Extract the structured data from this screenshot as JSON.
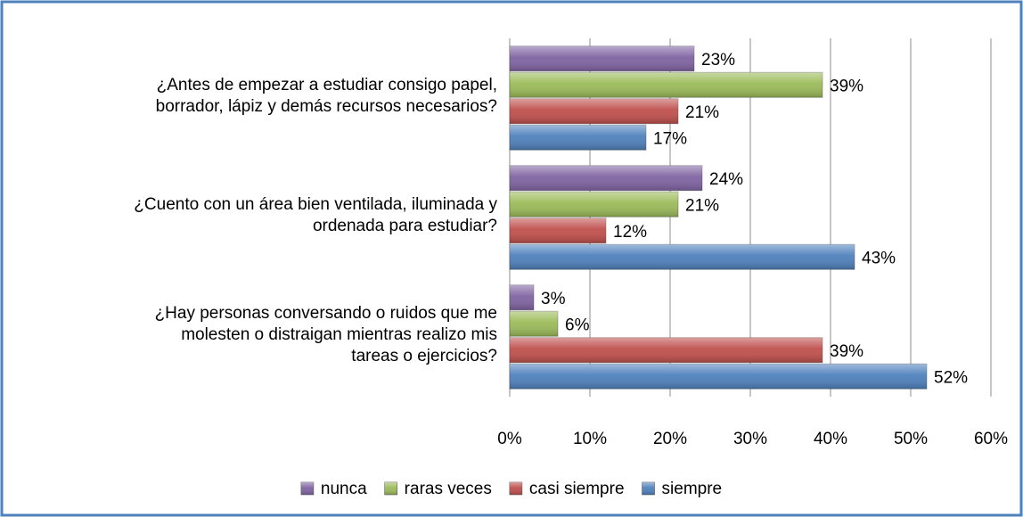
{
  "chart_data": {
    "type": "hbar",
    "categories": [
      [
        "¿Antes de empezar a estudiar consigo papel,",
        "borrador, lápiz y demás recursos necesarios?"
      ],
      [
        "¿Cuento con un área bien ventilada, iluminada y",
        "ordenada para estudiar?"
      ],
      [
        "¿Hay personas conversando o ruidos que me",
        "molesten o distraigan mientras realizo mis",
        "tareas o ejercicios?"
      ]
    ],
    "series": [
      {
        "name": "nunca",
        "color": "#8064a2",
        "values": [
          23,
          24,
          3
        ],
        "value_labels": [
          "23%",
          "24%",
          "3%"
        ]
      },
      {
        "name": "raras veces",
        "color": "#9bbb59",
        "values": [
          39,
          21,
          6
        ],
        "value_labels": [
          "39%",
          "21%",
          "6%"
        ]
      },
      {
        "name": "casi siempre",
        "color": "#c0504d",
        "values": [
          21,
          12,
          39
        ],
        "value_labels": [
          "21%",
          "12%",
          "39%"
        ]
      },
      {
        "name": "siempre",
        "color": "#4f81bd",
        "values": [
          17,
          43,
          52
        ],
        "value_labels": [
          "17%",
          "43%",
          "52%"
        ]
      }
    ],
    "xlim": [
      0,
      60
    ],
    "xticks": [
      {
        "value": 0,
        "label": "0%"
      },
      {
        "value": 10,
        "label": "10%"
      },
      {
        "value": 20,
        "label": "20%"
      },
      {
        "value": 30,
        "label": "30%"
      },
      {
        "value": 40,
        "label": "40%"
      },
      {
        "value": 50,
        "label": "50%"
      },
      {
        "value": 60,
        "label": "60%"
      }
    ],
    "grid": true,
    "legend": "bottom"
  }
}
